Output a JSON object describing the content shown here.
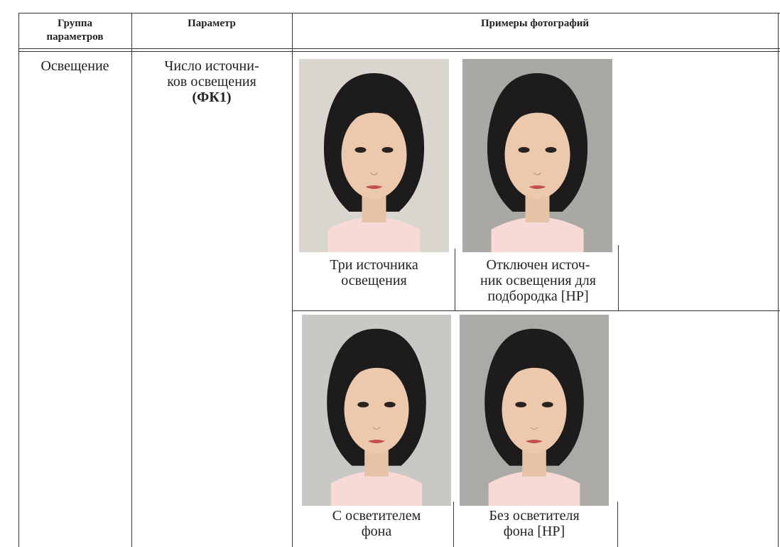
{
  "header": {
    "group": [
      "Группа",
      "параметров"
    ],
    "parameter": "Параметр",
    "examples": "Примеры фотографий"
  },
  "row": {
    "group": "Освещение",
    "parameter": [
      "Число источни-",
      "ков освещения",
      "(ФК1)"
    ],
    "photos": [
      {
        "caption": [
          "Три источника",
          "освещения"
        ]
      },
      {
        "caption": [
          "Отключен источ-",
          "ник освещения для",
          "подбородка [НР]"
        ]
      },
      {
        "caption": [
          "С осветителем",
          "фона"
        ]
      },
      {
        "caption": [
          "Без осветителя",
          "фона [НР]"
        ]
      }
    ]
  }
}
